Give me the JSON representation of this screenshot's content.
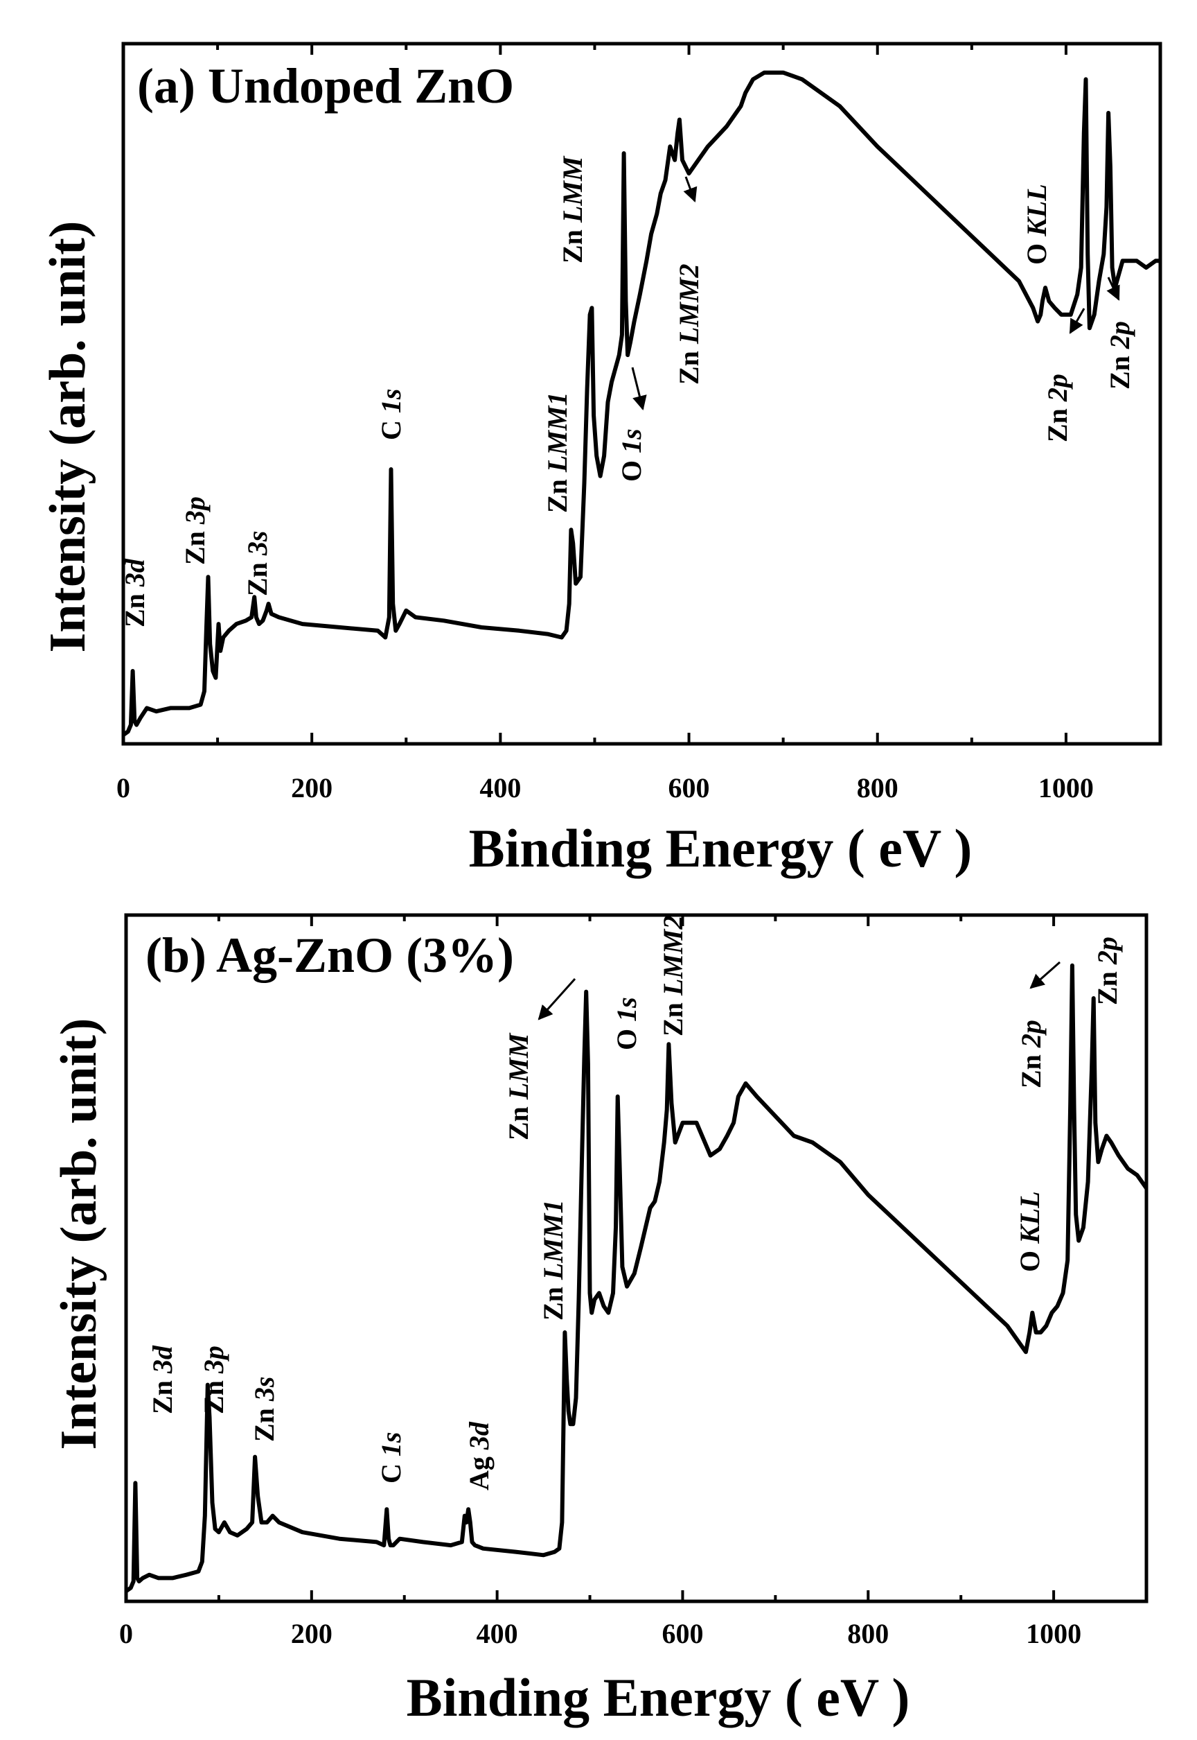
{
  "chart_data": [
    {
      "type": "line",
      "title": "(a) Undoped ZnO",
      "xlabel": "Binding Energy ( eV )",
      "ylabel": "Intensity (arb. unit)",
      "xlim": [
        0,
        1100
      ],
      "ylim": [
        0,
        100
      ],
      "xticks": [
        0,
        200,
        400,
        600,
        800,
        1000
      ],
      "tick_labels": [
        "0",
        "200",
        "400",
        "600",
        "800",
        "1000"
      ],
      "grid": false,
      "series": [
        {
          "name": "Undoped ZnO",
          "x": [
            0,
            5,
            8,
            10,
            12,
            14,
            18,
            25,
            35,
            50,
            70,
            82,
            86,
            88,
            90,
            92,
            95,
            98,
            101,
            103,
            106,
            112,
            120,
            130,
            136,
            139,
            141,
            144,
            148,
            152,
            154,
            157,
            165,
            190,
            230,
            270,
            278,
            282,
            284,
            286,
            289,
            293,
            300,
            310,
            340,
            380,
            420,
            450,
            465,
            470,
            473,
            475,
            477,
            480,
            485,
            489,
            492,
            495,
            497,
            499,
            502,
            506,
            510,
            514,
            518,
            522,
            526,
            529,
            531,
            533,
            535,
            538,
            542,
            548,
            555,
            560,
            566,
            570,
            575,
            580,
            585,
            588,
            590,
            593,
            600,
            620,
            640,
            650,
            655,
            660,
            668,
            680,
            700,
            720,
            740,
            760,
            780,
            800,
            830,
            860,
            890,
            920,
            950,
            965,
            970,
            973,
            975,
            978,
            982,
            988,
            995,
            1005,
            1012,
            1016,
            1019,
            1021,
            1023,
            1025,
            1030,
            1035,
            1040,
            1043,
            1045,
            1047,
            1049,
            1052,
            1056,
            1060,
            1065,
            1075,
            1085,
            1095,
            1100
          ],
          "y": [
            0.5,
            1,
            2,
            10,
            2.5,
            2,
            3,
            4.5,
            4,
            4.5,
            4.5,
            5,
            7,
            16,
            24,
            14,
            10,
            9,
            17,
            13,
            15,
            16,
            17,
            17.5,
            18,
            21,
            18,
            17,
            17.5,
            19,
            20,
            18.5,
            18,
            17,
            16.5,
            16,
            15,
            18,
            40,
            20,
            16,
            17,
            19,
            18,
            17.5,
            16.5,
            16,
            15.5,
            15,
            16,
            20,
            31,
            29,
            23,
            24,
            38,
            52,
            63,
            64,
            48,
            42,
            39,
            42,
            50,
            53,
            55,
            57,
            60,
            87,
            65,
            57,
            59,
            62,
            66,
            71,
            75,
            78,
            81,
            83,
            88,
            86,
            90,
            92,
            86,
            84,
            88,
            91,
            93,
            94,
            96,
            98,
            99,
            99,
            98,
            96,
            94,
            91,
            88,
            84,
            80,
            76,
            72,
            68,
            64,
            62,
            63,
            65,
            67,
            65,
            64,
            63,
            63,
            66,
            70,
            90,
            98,
            72,
            61,
            63,
            68,
            72,
            79,
            93,
            85,
            70,
            67,
            69,
            71,
            71,
            71,
            70,
            71,
            71
          ]
        }
      ],
      "annotations": [
        {
          "text": "Zn ",
          "italic": "3d"
        },
        {
          "text": "Zn ",
          "italic": "3p"
        },
        {
          "text": "Zn ",
          "italic": "3s"
        },
        {
          "text": "C ",
          "italic": "1s"
        },
        {
          "text": "Zn ",
          "italic": "LMM1"
        },
        {
          "text": "Zn ",
          "italic": "LMM"
        },
        {
          "text": "O ",
          "italic": "1s"
        },
        {
          "text": "Zn ",
          "italic": "LMM2"
        },
        {
          "text": "O ",
          "italic": "KLL"
        },
        {
          "text": "Zn ",
          "italic": "2p"
        },
        {
          "text": "Zn ",
          "italic": "2p"
        }
      ]
    },
    {
      "type": "line",
      "title": "(b) Ag-ZnO (3%)",
      "xlabel": "Binding Energy ( eV )",
      "ylabel": "Intensity (arb. unit)",
      "xlim": [
        0,
        1100
      ],
      "ylim": [
        0,
        100
      ],
      "xticks": [
        0,
        200,
        400,
        600,
        800,
        1000
      ],
      "tick_labels": [
        "0",
        "200",
        "400",
        "600",
        "800",
        "1000"
      ],
      "grid": false,
      "series": [
        {
          "name": "Ag-ZnO (3%)",
          "x": [
            0,
            5,
            8,
            10,
            12,
            14,
            18,
            25,
            35,
            50,
            65,
            78,
            82,
            85,
            88,
            90,
            93,
            96,
            100,
            106,
            112,
            120,
            130,
            136,
            139,
            142,
            146,
            152,
            158,
            165,
            190,
            230,
            270,
            278,
            281,
            283,
            285,
            288,
            295,
            320,
            350,
            362,
            365,
            367,
            369,
            371,
            373,
            376,
            385,
            420,
            450,
            462,
            467,
            470,
            473,
            475,
            477,
            479,
            482,
            485,
            488,
            491,
            494,
            496,
            498,
            500,
            502,
            505,
            510,
            515,
            520,
            525,
            528,
            530,
            532,
            535,
            540,
            548,
            555,
            560,
            565,
            570,
            575,
            580,
            583,
            585,
            588,
            592,
            600,
            615,
            630,
            640,
            648,
            655,
            660,
            668,
            680,
            700,
            720,
            740,
            770,
            800,
            830,
            860,
            890,
            920,
            950,
            965,
            970,
            974,
            977,
            981,
            986,
            992,
            998,
            1004,
            1010,
            1015,
            1018,
            1020,
            1022,
            1024,
            1027,
            1032,
            1037,
            1041,
            1043,
            1045,
            1048,
            1052,
            1057,
            1062,
            1070,
            1080,
            1090,
            1100
          ],
          "y": [
            0.5,
            1,
            2,
            17,
            2.5,
            2,
            2.5,
            3,
            2.5,
            2.5,
            3,
            3.5,
            5,
            12,
            32,
            27,
            14,
            10,
            9.5,
            11,
            9.5,
            9,
            10,
            11,
            21,
            15,
            11,
            11,
            12,
            11,
            9.5,
            8.5,
            8,
            7.5,
            13,
            8.5,
            7.5,
            7.5,
            8.5,
            8,
            7.5,
            8,
            12,
            11,
            13,
            11,
            8,
            7.5,
            7,
            6.5,
            6,
            6.5,
            7,
            11,
            40,
            33,
            28,
            26,
            26,
            30,
            45,
            64,
            82,
            92,
            81,
            46,
            43,
            45,
            46,
            44,
            43,
            46,
            56,
            76,
            66,
            50,
            47,
            49,
            53,
            56,
            59,
            60,
            63,
            69,
            74,
            84,
            75,
            69,
            72,
            72,
            67,
            68,
            70,
            72,
            76,
            78,
            76,
            73,
            70,
            69,
            66,
            61,
            57,
            53,
            49,
            45,
            41,
            38,
            37,
            40,
            43,
            40,
            40,
            41,
            43,
            44,
            46,
            51,
            75,
            96,
            74,
            58,
            54,
            56,
            63,
            80,
            91,
            72,
            66,
            68,
            70,
            69,
            67,
            65,
            64,
            62
          ]
        }
      ],
      "annotations": [
        {
          "text": "Zn ",
          "italic": "3d"
        },
        {
          "text": "Zn ",
          "italic": "3p"
        },
        {
          "text": "Zn ",
          "italic": "3s"
        },
        {
          "text": "C ",
          "italic": "1s"
        },
        {
          "text": "Ag ",
          "italic": "3d"
        },
        {
          "text": "Zn ",
          "italic": "LMM1"
        },
        {
          "text": "Zn ",
          "italic": "LMM"
        },
        {
          "text": "O ",
          "italic": "1s"
        },
        {
          "text": "Zn ",
          "italic": "LMM2"
        },
        {
          "text": "O ",
          "italic": "KLL"
        },
        {
          "text": "Zn ",
          "italic": "2p"
        },
        {
          "text": "Zn ",
          "italic": "2p"
        }
      ]
    }
  ]
}
